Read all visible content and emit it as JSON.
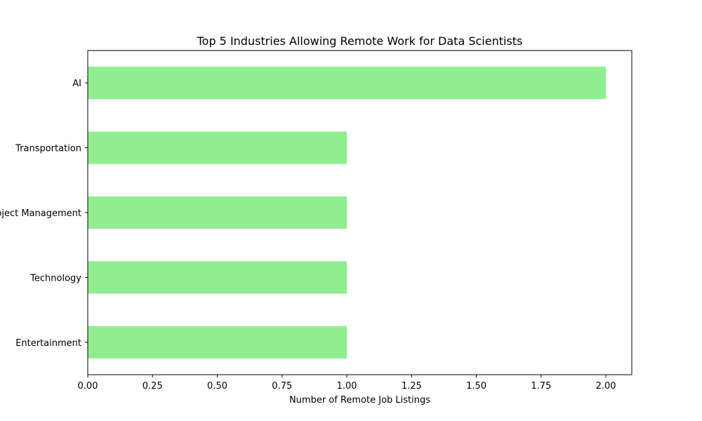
{
  "chart_data": {
    "type": "bar",
    "orientation": "horizontal",
    "title": "Top 5 Industries Allowing Remote Work for Data Scientists",
    "xlabel": "Number of Remote Job Listings",
    "ylabel": "",
    "categories": [
      "AI",
      "Transportation",
      "Project Management",
      "Technology",
      "Entertainment"
    ],
    "values": [
      2,
      1,
      1,
      1,
      1
    ],
    "xlim": [
      0,
      2.1
    ],
    "xticks": [
      0.0,
      0.25,
      0.5,
      0.75,
      1.0,
      1.25,
      1.5,
      1.75,
      2.0
    ],
    "xtick_labels": [
      "0.00",
      "0.25",
      "0.50",
      "0.75",
      "1.00",
      "1.25",
      "1.50",
      "1.75",
      "2.00"
    ],
    "bar_color": "#90ee90",
    "grid": false,
    "legend": "none"
  }
}
